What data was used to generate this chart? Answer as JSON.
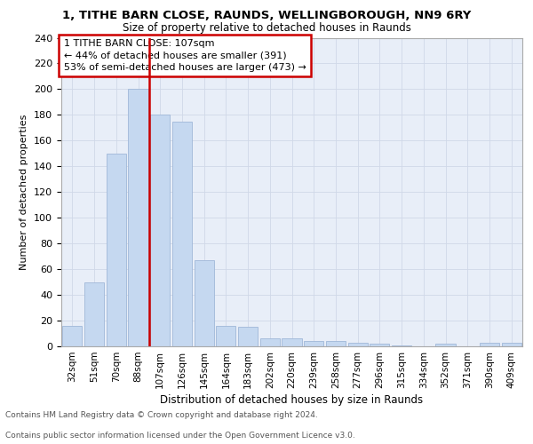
{
  "title": "1, TITHE BARN CLOSE, RAUNDS, WELLINGBOROUGH, NN9 6RY",
  "subtitle": "Size of property relative to detached houses in Raunds",
  "xlabel": "Distribution of detached houses by size in Raunds",
  "ylabel": "Number of detached properties",
  "categories": [
    "32sqm",
    "51sqm",
    "70sqm",
    "88sqm",
    "107sqm",
    "126sqm",
    "145sqm",
    "164sqm",
    "183sqm",
    "202sqm",
    "220sqm",
    "239sqm",
    "258sqm",
    "277sqm",
    "296sqm",
    "315sqm",
    "334sqm",
    "352sqm",
    "371sqm",
    "390sqm",
    "409sqm"
  ],
  "values": [
    16,
    50,
    150,
    200,
    180,
    175,
    67,
    16,
    15,
    6,
    6,
    4,
    4,
    3,
    2,
    1,
    0,
    2,
    0,
    3,
    3
  ],
  "bar_color": "#c5d8f0",
  "bar_edge_color": "#a0b8d8",
  "vline_x_index": 4,
  "vline_color": "#cc0000",
  "annotation_line1": "1 TITHE BARN CLOSE: 107sqm",
  "annotation_line2": "← 44% of detached houses are smaller (391)",
  "annotation_line3": "53% of semi-detached houses are larger (473) →",
  "annotation_box_color": "#cc0000",
  "ylim": [
    0,
    240
  ],
  "yticks": [
    0,
    20,
    40,
    60,
    80,
    100,
    120,
    140,
    160,
    180,
    200,
    220,
    240
  ],
  "grid_color": "#d0d8e8",
  "background_color": "#e8eef8",
  "footnote1": "Contains HM Land Registry data © Crown copyright and database right 2024.",
  "footnote2": "Contains public sector information licensed under the Open Government Licence v3.0."
}
